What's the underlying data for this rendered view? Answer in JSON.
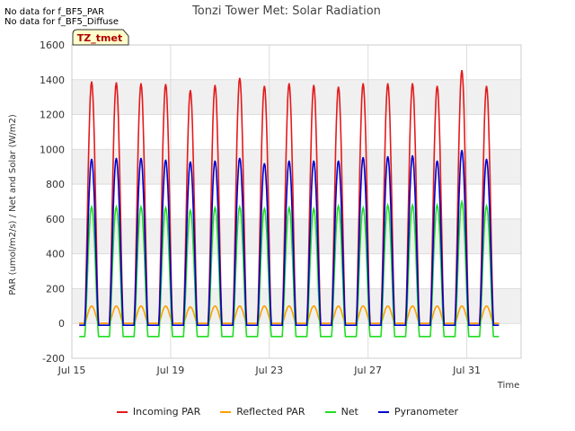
{
  "notes": [
    "No data for f_BF5_PAR",
    "No data for f_BF5_Diffuse"
  ],
  "badge": "TZ_tmet",
  "chart_data": {
    "type": "line",
    "title": "Tonzi Tower Met: Solar Radiation",
    "xlabel": "Time",
    "ylabel": "PAR (umol/m2/s) / Net and Solar (W/m2)",
    "xlim": [
      0,
      18.2
    ],
    "ylim": [
      -200,
      1600
    ],
    "yticks": [
      -200,
      0,
      200,
      400,
      600,
      800,
      1000,
      1200,
      1400,
      1600
    ],
    "xticks": [
      {
        "x": 0,
        "label": "Jul 15"
      },
      {
        "x": 4,
        "label": "Jul 19"
      },
      {
        "x": 8,
        "label": "Jul 23"
      },
      {
        "x": 12,
        "label": "Jul 27"
      },
      {
        "x": 16,
        "label": "Jul 31"
      }
    ],
    "grid": true,
    "legend_position": "bottom",
    "day_start": 0.3,
    "series": [
      {
        "name": "Incoming PAR",
        "color": "#e31a1c",
        "night": 0,
        "peaks": [
          1390,
          1385,
          1380,
          1375,
          1340,
          1370,
          1410,
          1365,
          1380,
          1370,
          1360,
          1380,
          1380,
          1380,
          1365,
          1455,
          1365
        ]
      },
      {
        "name": "Reflected PAR",
        "color": "#ff9f00",
        "night": 0,
        "peaks": [
          100,
          100,
          100,
          100,
          95,
          100,
          100,
          100,
          100,
          100,
          100,
          100,
          100,
          100,
          100,
          100,
          100
        ]
      },
      {
        "name": "Net",
        "color": "#22dd22",
        "night": -75,
        "peaks": [
          670,
          670,
          670,
          665,
          650,
          665,
          670,
          660,
          665,
          660,
          675,
          665,
          680,
          680,
          680,
          700,
          675
        ]
      },
      {
        "name": "Pyranometer",
        "color": "#0000cc",
        "night": -10,
        "peaks": [
          945,
          950,
          950,
          940,
          930,
          935,
          950,
          920,
          935,
          935,
          935,
          955,
          960,
          965,
          935,
          995,
          945
        ]
      }
    ]
  }
}
